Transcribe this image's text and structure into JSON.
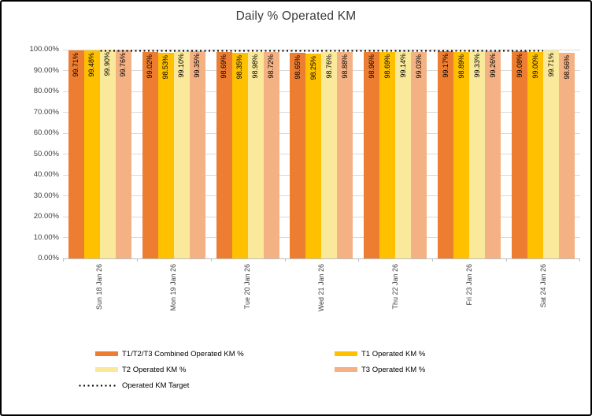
{
  "chart_data": {
    "type": "bar",
    "title": "Daily % Operated KM",
    "categories": [
      "Sun 18 Jan 26",
      "Mon 19 Jan 26",
      "Tue 20 Jan 26",
      "Wed 21 Jan 26",
      "Thu 22 Jan 26",
      "Fri 23 Jan 26",
      "Sat 24 Jan 26"
    ],
    "series": [
      {
        "name": "T1/T2/T3 Combined Operated KM %",
        "color": "#ED7D31",
        "values": [
          99.71,
          99.02,
          98.69,
          98.65,
          98.96,
          99.17,
          99.08
        ]
      },
      {
        "name": "T1 Operated KM %",
        "color": "#FFC000",
        "values": [
          99.48,
          98.53,
          98.35,
          98.25,
          98.69,
          98.89,
          99.0
        ]
      },
      {
        "name": "T2 Operated KM %",
        "color": "#FAE99B",
        "values": [
          99.9,
          99.1,
          98.98,
          98.76,
          99.14,
          99.33,
          99.71
        ]
      },
      {
        "name": "T3 Operated KM %",
        "color": "#F4B183",
        "values": [
          99.76,
          99.35,
          98.72,
          98.88,
          99.03,
          99.26,
          98.66
        ]
      }
    ],
    "target": {
      "name": "Operated KM Target",
      "value": 99.5,
      "style": "dotted",
      "color": "#000000"
    },
    "y_axis": {
      "min": 0,
      "max": 100,
      "ticks": [
        "0.00%",
        "10.00%",
        "20.00%",
        "30.00%",
        "40.00%",
        "50.00%",
        "60.00%",
        "70.00%",
        "80.00%",
        "90.00%",
        "100.00%"
      ]
    },
    "value_label_format": "0.00%",
    "value_label_rotation": 90,
    "x_label_rotation": 90,
    "grid": true,
    "legend_position": "bottom"
  },
  "legend": {
    "items": [
      {
        "label": "T1/T2/T3 Combined Operated KM %",
        "marker": "bar",
        "color": "#ED7D31"
      },
      {
        "label": "T1 Operated KM %",
        "marker": "bar",
        "color": "#FFC000"
      },
      {
        "label": "T2 Operated KM %",
        "marker": "bar",
        "color": "#FAE99B"
      },
      {
        "label": "T3 Operated KM %",
        "marker": "bar",
        "color": "#F4B183"
      },
      {
        "label": "Operated KM Target",
        "marker": "dotted-line",
        "color": "#000000"
      }
    ]
  },
  "colors": {
    "gridline": "#D9D9D9",
    "axis_line": "#BFBFBF",
    "axis_text": "#404040",
    "title_text": "#3B3B3B",
    "frame_border": "#000000",
    "background": "#FFFFFF"
  }
}
